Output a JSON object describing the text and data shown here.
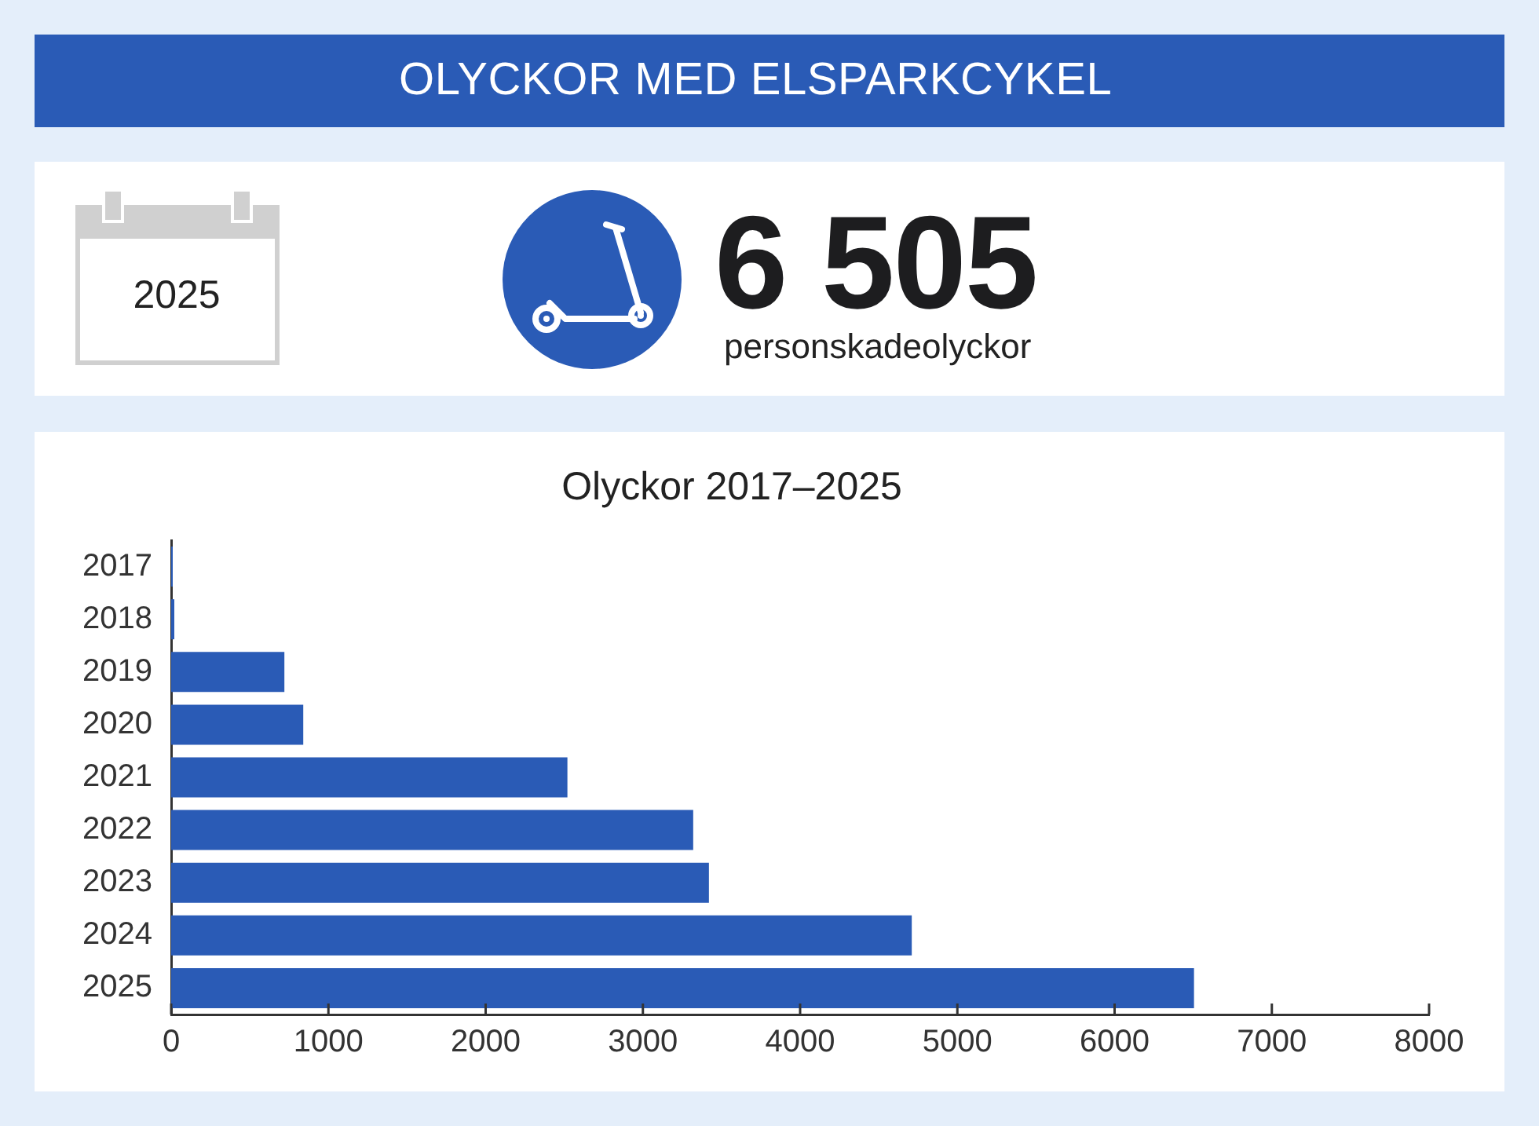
{
  "chart_data": {
    "type": "bar",
    "orientation": "horizontal",
    "title": "OLYCKOR MED ELSPARKCYKEL",
    "subtitle": "Olyckor 2017–2025",
    "categories": [
      "2017",
      "2018",
      "2019",
      "2020",
      "2021",
      "2022",
      "2023",
      "2024",
      "2025"
    ],
    "values": [
      10,
      20,
      720,
      840,
      2520,
      3320,
      3420,
      4710,
      6505
    ],
    "color": "#2a5bb6",
    "xlim": [
      0,
      8000
    ],
    "xticks": [
      0,
      1000,
      2000,
      3000,
      4000,
      5000,
      6000,
      7000,
      8000
    ],
    "annotations": [
      "2025",
      "6 505",
      "personskadeolyckor"
    ]
  }
}
